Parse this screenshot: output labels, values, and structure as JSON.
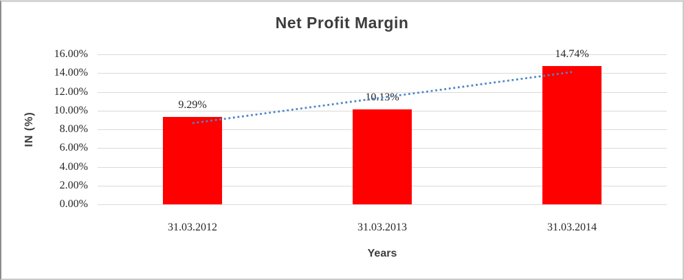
{
  "chart_data": {
    "type": "bar",
    "title": "Net Profit Margin",
    "xlabel": "Years",
    "ylabel": "IN (%)",
    "categories": [
      "31.03.2012",
      "31.03.2013",
      "31.03.2014"
    ],
    "values": [
      9.29,
      10.13,
      14.74
    ],
    "data_labels": [
      "9.29%",
      "10.13%",
      "14.74%"
    ],
    "ylim": [
      0,
      16
    ],
    "ytick_labels": [
      "16.00%",
      "14.00%",
      "12.00%",
      "10.00%",
      "8.00%",
      "6.00%",
      "4.00%",
      "2.00%",
      "0.00%"
    ],
    "grid": true,
    "legend": "none",
    "bar_color": "#FF0000",
    "trendline": {
      "type": "linear",
      "style": "dotted",
      "color": "#4E86C8"
    }
  }
}
